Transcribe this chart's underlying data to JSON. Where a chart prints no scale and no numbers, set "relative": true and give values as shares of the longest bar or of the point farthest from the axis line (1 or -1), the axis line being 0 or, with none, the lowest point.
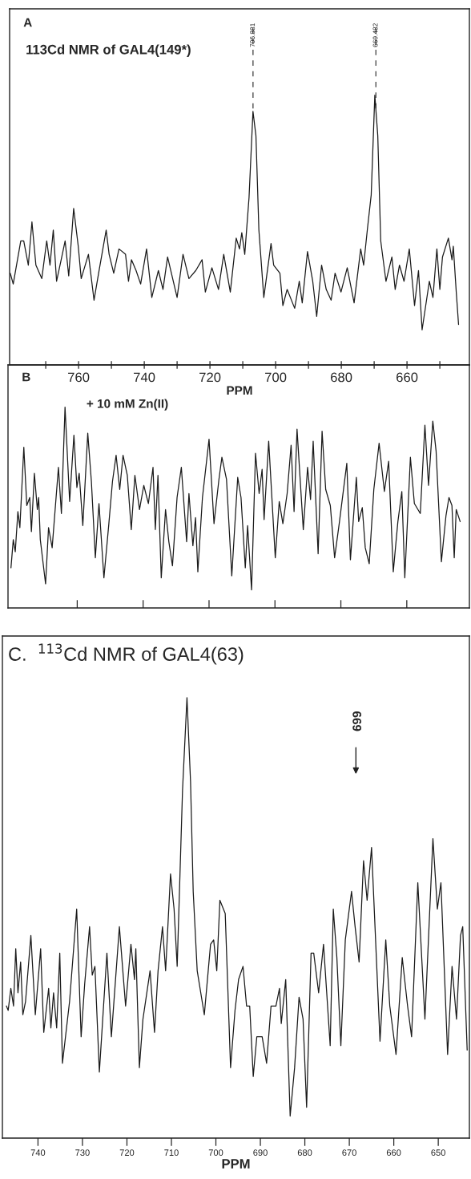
{
  "chart_data": [
    {
      "type": "line",
      "title": "A",
      "subtitle": "113Cd NMR of GAL4(149*)",
      "xlabel": "PPM",
      "relative": true,
      "tick_labels": "x",
      "xlim": [
        781,
        641
      ],
      "xticks": [
        {
          "value": 770,
          "label": null
        },
        760,
        {
          "value": 750,
          "label": null
        },
        740,
        {
          "value": 730,
          "label": null
        },
        720,
        {
          "value": 710,
          "label": null
        },
        700,
        {
          "value": 690,
          "label": null
        },
        680,
        {
          "value": 670,
          "label": null
        },
        660,
        {
          "value": 650,
          "label": null
        }
      ],
      "ref_lines": [
        {
          "axis": "x",
          "value": 706.881,
          "label": "706.881",
          "line_style": "dashed"
        },
        {
          "axis": "x",
          "value": 669.482,
          "label": "669.482",
          "line_style": "dashed"
        }
      ],
      "x": [
        780.8,
        779.9,
        777.6,
        776.7,
        775.3,
        774.2,
        773.0,
        771.2,
        769.7,
        768.7,
        767.7,
        766.7,
        765.3,
        764.1,
        763.0,
        761.5,
        760.1,
        759.2,
        757.0,
        755.3,
        753.9,
        751.6,
        750.7,
        749.3,
        747.7,
        745.7,
        744.8,
        743.9,
        742.5,
        741.1,
        739.3,
        737.7,
        735.7,
        734.3,
        732.9,
        730.0,
        728.2,
        726.4,
        724.3,
        722.4,
        721.4,
        719.4,
        717.4,
        715.8,
        713.8,
        712.0,
        711.0,
        710.3,
        709.4,
        708.1,
        706.9,
        706.0,
        705.1,
        703.6,
        701.4,
        700.6,
        698.7,
        697.8,
        696.5,
        694.2,
        692.8,
        691.9,
        690.3,
        688.7,
        687.5,
        686.0,
        684.6,
        683.1,
        681.9,
        680.1,
        678.2,
        676.1,
        674.1,
        673.2,
        672.0,
        670.9,
        669.8,
        668.9,
        668.0,
        666.4,
        664.6,
        663.6,
        662.3,
        660.9,
        659.3,
        657.7,
        656.5,
        655.4,
        653.2,
        652.1,
        650.9,
        650.0,
        649.2,
        647.4,
        646.3,
        645.9,
        645.0,
        644.3
      ],
      "series": [
        {
          "color": "#1a1a1a",
          "values": [
            0.34,
            0.3,
            0.46,
            0.46,
            0.37,
            0.53,
            0.37,
            0.32,
            0.46,
            0.37,
            0.5,
            0.31,
            0.39,
            0.46,
            0.33,
            0.58,
            0.44,
            0.32,
            0.41,
            0.24,
            0.34,
            0.5,
            0.41,
            0.34,
            0.43,
            0.41,
            0.31,
            0.39,
            0.35,
            0.3,
            0.43,
            0.25,
            0.35,
            0.28,
            0.4,
            0.25,
            0.41,
            0.32,
            0.35,
            0.39,
            0.27,
            0.36,
            0.28,
            0.41,
            0.27,
            0.47,
            0.43,
            0.49,
            0.41,
            0.62,
            0.94,
            0.85,
            0.5,
            0.25,
            0.45,
            0.37,
            0.34,
            0.22,
            0.28,
            0.21,
            0.31,
            0.23,
            0.42,
            0.31,
            0.18,
            0.37,
            0.28,
            0.24,
            0.34,
            0.27,
            0.36,
            0.23,
            0.43,
            0.37,
            0.51,
            0.63,
            1.0,
            0.85,
            0.46,
            0.31,
            0.4,
            0.28,
            0.37,
            0.31,
            0.43,
            0.22,
            0.35,
            0.13,
            0.31,
            0.25,
            0.43,
            0.28,
            0.4,
            0.47,
            0.39,
            0.44,
            0.27,
            0.15
          ]
        }
      ]
    },
    {
      "type": "line",
      "title": "B",
      "subtitle": "+ 10 mM Zn(II)",
      "relative": true,
      "tick_labels": false,
      "xlim": [
        781,
        641
      ],
      "xticks": [
        {
          "value": 760,
          "label": null
        },
        {
          "value": 740,
          "label": null
        },
        {
          "value": 720,
          "label": null
        },
        {
          "value": 700,
          "label": null
        },
        {
          "value": 680,
          "label": null
        },
        {
          "value": 660,
          "label": null
        }
      ],
      "x": [
        780.1,
        779.4,
        778.8,
        778.0,
        777.4,
        776.2,
        775.3,
        774.4,
        773.9,
        773.0,
        772.1,
        771.7,
        771.2,
        769.6,
        768.7,
        767.6,
        765.7,
        764.8,
        763.7,
        762.3,
        761.0,
        760.1,
        759.4,
        758.3,
        756.8,
        755.7,
        754.5,
        753.4,
        751.9,
        750.4,
        749.3,
        748.2,
        747.1,
        746.1,
        744.8,
        743.6,
        742.5,
        741.1,
        739.8,
        738.4,
        737.0,
        736.3,
        735.5,
        734.5,
        733.2,
        732.2,
        731.1,
        729.7,
        728.4,
        726.8,
        726.1,
        724.9,
        724.1,
        723.4,
        722.0,
        720.0,
        718.5,
        717.0,
        716.1,
        714.7,
        713.1,
        711.3,
        710.3,
        709.0,
        708.3,
        707.1,
        705.9,
        704.8,
        703.9,
        703.3,
        701.9,
        699.9,
        698.7,
        697.6,
        696.3,
        695.1,
        694.2,
        693.3,
        691.4,
        690.1,
        689.2,
        688.4,
        686.9,
        685.7,
        684.6,
        683.2,
        681.9,
        680.5,
        678.2,
        677.1,
        675.3,
        674.6,
        673.5,
        672.6,
        671.4,
        670.0,
        668.4,
        666.8,
        665.5,
        664.1,
        662.7,
        661.5,
        660.6,
        658.9,
        657.7,
        655.9,
        654.5,
        653.4,
        652.1,
        651.1,
        649.5,
        648.1,
        647.2,
        646.3,
        645.6,
        645.0,
        643.8
      ],
      "series": [
        {
          "color": "#1a1a1a",
          "values": [
            0.2,
            0.34,
            0.28,
            0.48,
            0.4,
            0.8,
            0.51,
            0.55,
            0.38,
            0.67,
            0.49,
            0.55,
            0.34,
            0.12,
            0.4,
            0.3,
            0.7,
            0.47,
            1.0,
            0.53,
            0.86,
            0.6,
            0.67,
            0.41,
            0.87,
            0.63,
            0.25,
            0.52,
            0.15,
            0.42,
            0.63,
            0.76,
            0.59,
            0.76,
            0.66,
            0.39,
            0.66,
            0.49,
            0.61,
            0.52,
            0.7,
            0.39,
            0.66,
            0.15,
            0.49,
            0.33,
            0.21,
            0.55,
            0.7,
            0.33,
            0.57,
            0.31,
            0.45,
            0.18,
            0.55,
            0.84,
            0.42,
            0.64,
            0.75,
            0.64,
            0.16,
            0.65,
            0.55,
            0.2,
            0.41,
            0.09,
            0.77,
            0.57,
            0.69,
            0.44,
            0.83,
            0.25,
            0.53,
            0.42,
            0.57,
            0.81,
            0.48,
            0.89,
            0.39,
            0.7,
            0.54,
            0.83,
            0.27,
            0.88,
            0.59,
            0.51,
            0.25,
            0.42,
            0.72,
            0.24,
            0.65,
            0.43,
            0.5,
            0.3,
            0.22,
            0.59,
            0.82,
            0.58,
            0.73,
            0.18,
            0.43,
            0.58,
            0.15,
            0.75,
            0.52,
            0.47,
            0.91,
            0.61,
            0.93,
            0.78,
            0.23,
            0.46,
            0.55,
            0.51,
            0.25,
            0.49,
            0.43
          ]
        }
      ]
    },
    {
      "type": "line",
      "title": "C.  $^{113}$Cd NMR of GAL4(63)",
      "xlabel": "PPM",
      "relative": true,
      "tick_labels": "x",
      "xlim": [
        748,
        643
      ],
      "xticks": [
        740,
        730,
        720,
        710,
        700,
        690,
        680,
        670,
        660,
        650
      ],
      "annotations": [
        "669"
      ],
      "x": [
        747.1,
        746.7,
        746.1,
        745.5,
        745.0,
        744.5,
        743.9,
        743.4,
        742.8,
        741.6,
        740.6,
        739.4,
        738.7,
        737.6,
        737.1,
        736.5,
        735.8,
        735.1,
        734.5,
        732.9,
        731.3,
        730.3,
        729.5,
        728.4,
        727.8,
        727.2,
        726.2,
        724.5,
        723.5,
        721.7,
        720.3,
        719.1,
        718.3,
        718.0,
        717.2,
        716.4,
        714.8,
        713.8,
        713.0,
        712.0,
        711.3,
        710.2,
        709.4,
        708.7,
        707.5,
        706.5,
        705.7,
        705.1,
        704.2,
        702.6,
        701.2,
        700.5,
        699.8,
        699.1,
        697.9,
        696.7,
        695.7,
        694.9,
        693.9,
        693.1,
        692.4,
        691.6,
        690.8,
        689.6,
        688.6,
        687.6,
        686.5,
        685.7,
        685.3,
        684.3,
        683.3,
        682.3,
        681.3,
        680.4,
        679.6,
        678.6,
        678.0,
        676.9,
        675.8,
        674.3,
        673.6,
        672.8,
        671.9,
        670.9,
        669.5,
        668.7,
        667.8,
        666.8,
        666.0,
        665.0,
        663.1,
        661.8,
        660.9,
        659.5,
        658.1,
        656.9,
        656.0,
        654.6,
        653.0,
        651.2,
        650.2,
        649.4,
        647.9,
        646.9,
        645.9,
        645.0,
        644.5,
        643.5
      ],
      "series": [
        {
          "color": "#1a1a1a",
          "values": [
            0.3,
            0.29,
            0.34,
            0.3,
            0.43,
            0.33,
            0.4,
            0.28,
            0.31,
            0.46,
            0.28,
            0.43,
            0.24,
            0.34,
            0.25,
            0.33,
            0.25,
            0.42,
            0.17,
            0.31,
            0.52,
            0.23,
            0.35,
            0.48,
            0.37,
            0.39,
            0.15,
            0.42,
            0.23,
            0.48,
            0.3,
            0.44,
            0.36,
            0.43,
            0.16,
            0.27,
            0.38,
            0.24,
            0.38,
            0.48,
            0.38,
            0.6,
            0.52,
            0.39,
            0.79,
            1.0,
            0.81,
            0.56,
            0.38,
            0.28,
            0.44,
            0.45,
            0.38,
            0.54,
            0.51,
            0.16,
            0.29,
            0.36,
            0.39,
            0.3,
            0.3,
            0.14,
            0.23,
            0.23,
            0.17,
            0.3,
            0.3,
            0.34,
            0.26,
            0.36,
            0.05,
            0.16,
            0.32,
            0.27,
            0.07,
            0.42,
            0.42,
            0.33,
            0.44,
            0.21,
            0.52,
            0.41,
            0.21,
            0.45,
            0.56,
            0.48,
            0.4,
            0.63,
            0.54,
            0.66,
            0.22,
            0.45,
            0.3,
            0.19,
            0.41,
            0.3,
            0.23,
            0.58,
            0.27,
            0.68,
            0.52,
            0.58,
            0.19,
            0.39,
            0.27,
            0.46,
            0.48,
            0.2
          ]
        }
      ]
    }
  ]
}
